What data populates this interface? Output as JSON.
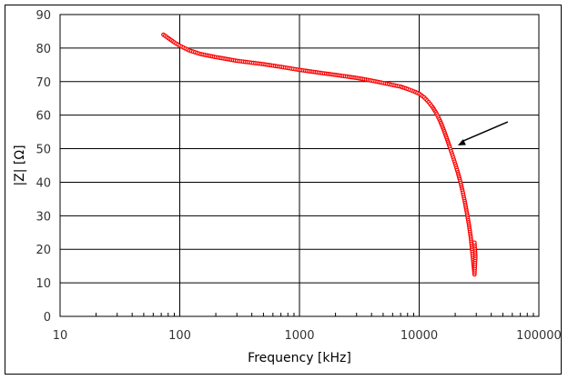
{
  "chart_data": {
    "type": "scatter",
    "title": "",
    "xlabel": "Frequency [kHz]",
    "ylabel": "|Z| [Ω]",
    "xscale": "log",
    "xlim": [
      10,
      100000
    ],
    "ylim": [
      0,
      90
    ],
    "xticks": [
      "10",
      "100",
      "1000",
      "10000",
      "100000"
    ],
    "yticks": [
      "0",
      "10",
      "20",
      "30",
      "40",
      "50",
      "60",
      "70",
      "80",
      "90"
    ],
    "grid": true,
    "legend": null,
    "marker_color": "#ff0000",
    "series": [
      {
        "name": "|Z|",
        "x": [
          73,
          80,
          90,
          100,
          120,
          150,
          200,
          300,
          500,
          700,
          1000,
          1500,
          2000,
          3000,
          4000,
          5000,
          6000,
          7000,
          8000,
          9000,
          10000,
          11000,
          12000,
          13000,
          14000,
          15000,
          16000,
          17000,
          18000,
          19000,
          20000,
          21000,
          22000,
          23000,
          24000,
          25000,
          26000,
          27000,
          28000,
          29000,
          29500,
          29000
        ],
        "y": [
          84,
          83,
          81.7,
          80.7,
          79.3,
          78.2,
          77.3,
          76.2,
          75.2,
          74.4,
          73.5,
          72.6,
          72,
          71.1,
          70.3,
          69.6,
          69,
          68.5,
          67.8,
          67.1,
          66.4,
          65.3,
          63.9,
          62.3,
          60.4,
          58.2,
          55.7,
          53.1,
          50.5,
          48,
          45.5,
          43,
          40.4,
          37.5,
          34.4,
          31,
          27.5,
          23.5,
          18,
          12.5,
          18,
          22
        ]
      }
    ],
    "annotations": [
      {
        "type": "arrow",
        "from_xy": [
          55000,
          58
        ],
        "to_xy": [
          21000,
          51
        ]
      }
    ]
  }
}
